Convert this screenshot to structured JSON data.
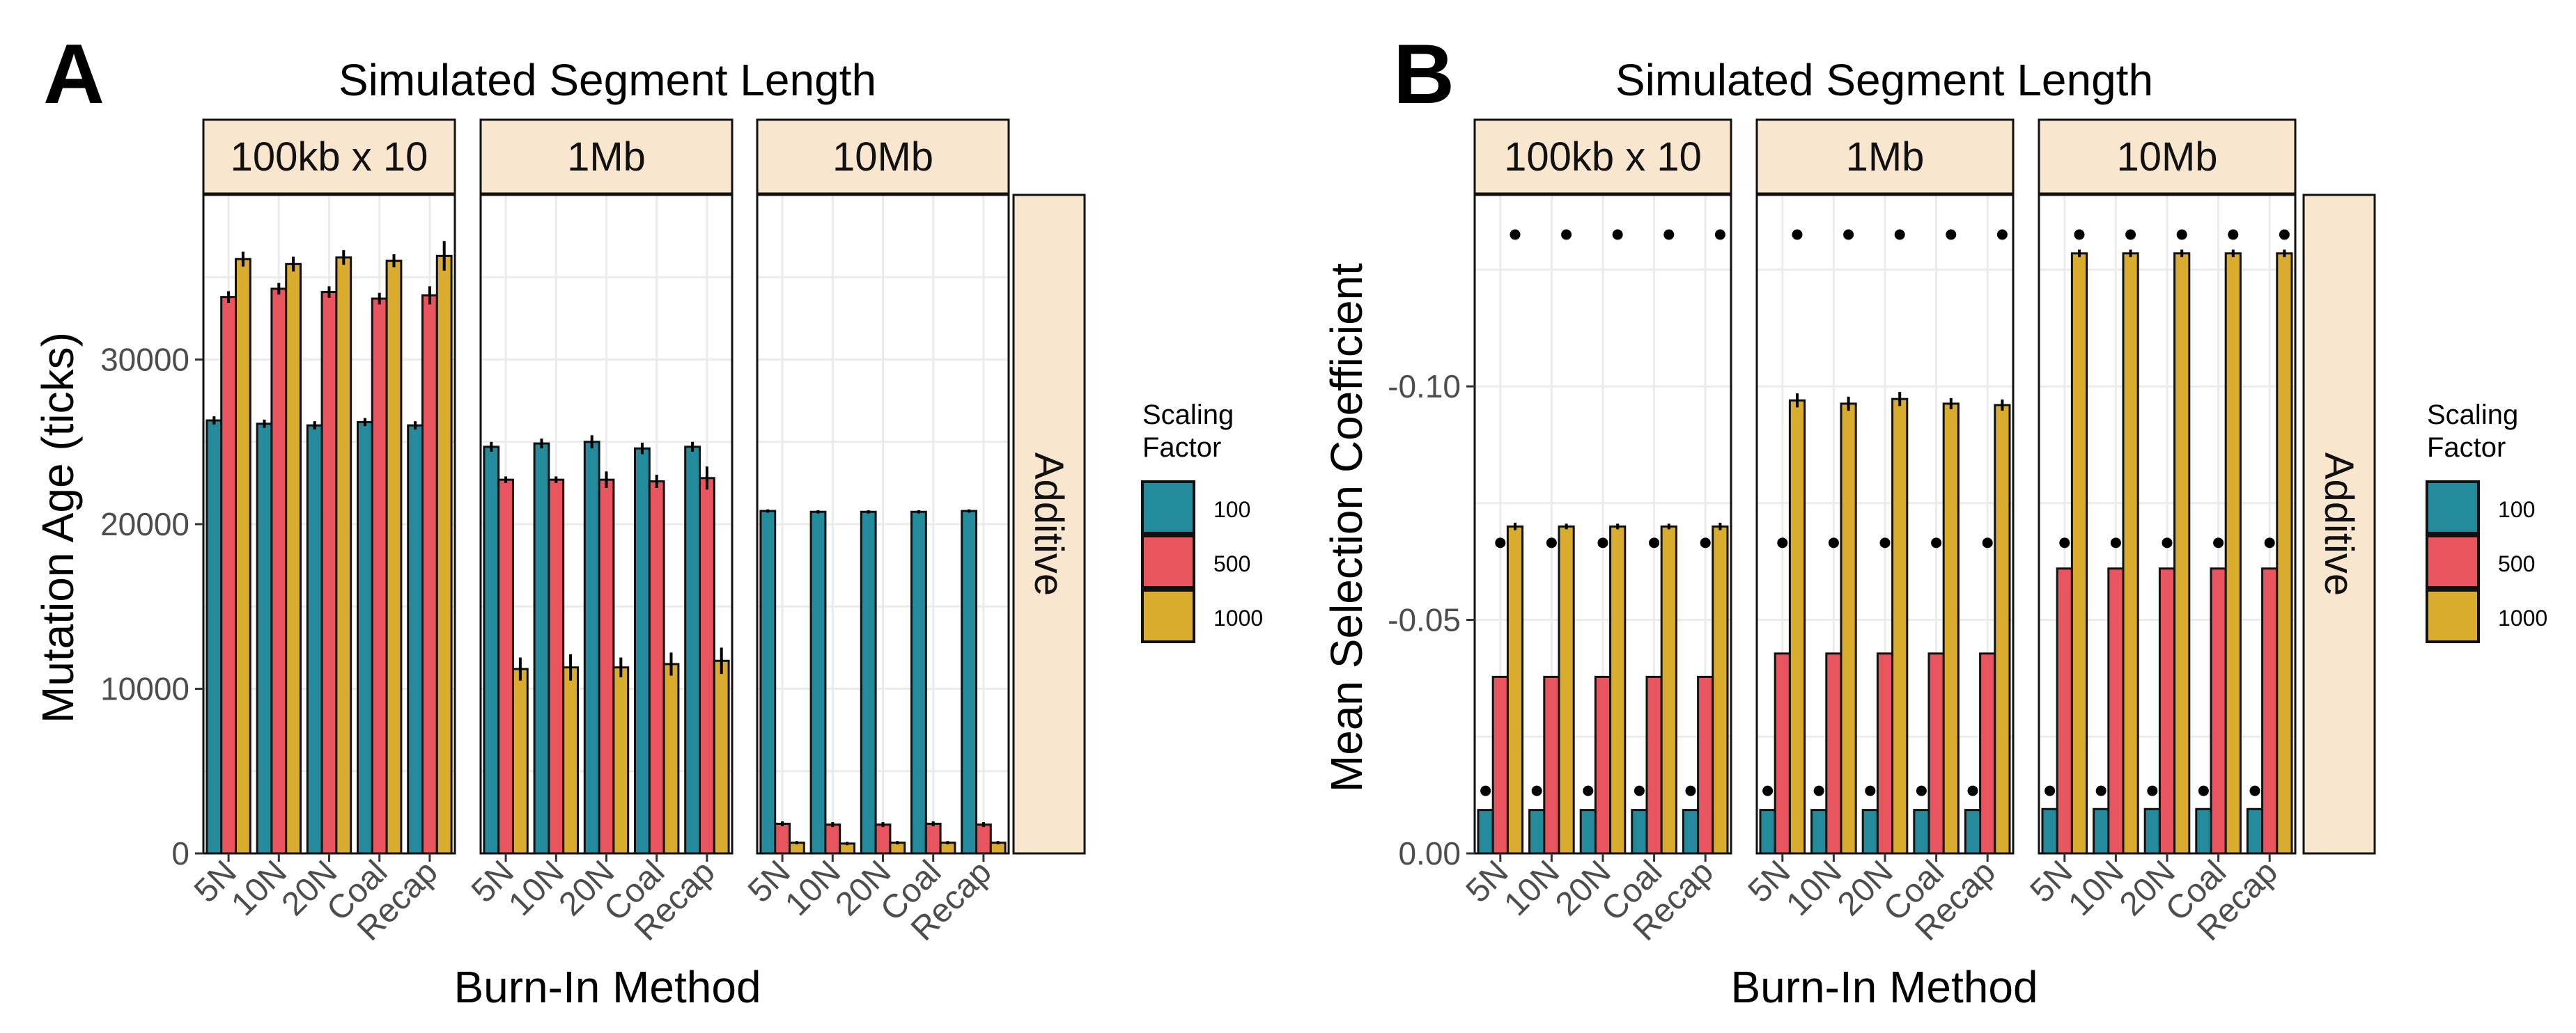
{
  "figure": {
    "panel_labels": [
      "A",
      "B"
    ],
    "strip_fill": "#f9e6cf",
    "grid_color": "#ebebeb"
  },
  "chart_data": [
    {
      "type": "bar",
      "panel": "A",
      "title": "Simulated Segment Length",
      "facets": [
        "100kb x 10",
        "1Mb",
        "10Mb"
      ],
      "row_strip": "Additive",
      "xlabel": "Burn-In Method",
      "ylabel": "Mutation Age (ticks)",
      "categories": [
        "5N",
        "10N",
        "20N",
        "Coal",
        "Recap"
      ],
      "ylim": [
        0,
        40000
      ],
      "yticks": [
        0,
        10000,
        20000,
        30000
      ],
      "ytick_labels": [
        "0",
        "10000",
        "20000",
        "30000"
      ],
      "legend": {
        "title_lines": [
          "Scaling",
          "Factor"
        ],
        "entries": [
          "100",
          "500",
          "1000"
        ],
        "colors": [
          "#248b9c",
          "#e8555e",
          "#d9ac2e"
        ],
        "position": "right"
      },
      "series_by_facet": [
        {
          "facet": "100kb x 10",
          "series": [
            {
              "name": "100",
              "values": [
                26300,
                26100,
                26000,
                26200,
                26000
              ],
              "err": [
                250,
                250,
                250,
                250,
                250
              ]
            },
            {
              "name": "500",
              "values": [
                33800,
                34300,
                34100,
                33700,
                33900
              ],
              "err": [
                350,
                350,
                350,
                350,
                550
              ]
            },
            {
              "name": "1000",
              "values": [
                36100,
                35800,
                36200,
                36000,
                36300
              ],
              "err": [
                450,
                450,
                450,
                400,
                900
              ]
            }
          ]
        },
        {
          "facet": "1Mb",
          "series": [
            {
              "name": "100",
              "values": [
                24700,
                24900,
                25000,
                24600,
                24700
              ],
              "err": [
                300,
                300,
                400,
                350,
                300
              ]
            },
            {
              "name": "500",
              "values": [
                22700,
                22700,
                22700,
                22600,
                22800
              ],
              "err": [
                200,
                200,
                500,
                400,
                700
              ]
            },
            {
              "name": "1000",
              "values": [
                11200,
                11300,
                11300,
                11500,
                11700
              ],
              "err": [
                700,
                800,
                600,
                700,
                800
              ]
            }
          ]
        },
        {
          "facet": "10Mb",
          "series": [
            {
              "name": "100",
              "values": [
                20800,
                20750,
                20750,
                20750,
                20800
              ],
              "err": [
                100,
                100,
                100,
                100,
                100
              ]
            },
            {
              "name": "500",
              "values": [
                1800,
                1750,
                1750,
                1800,
                1750
              ],
              "err": [
                150,
                150,
                150,
                150,
                150
              ]
            },
            {
              "name": "1000",
              "values": [
                650,
                600,
                650,
                650,
                650
              ],
              "err": [
                100,
                100,
                100,
                100,
                100
              ]
            }
          ]
        }
      ]
    },
    {
      "type": "bar",
      "panel": "B",
      "title": "Simulated Segment Length",
      "facets": [
        "100kb x 10",
        "1Mb",
        "10Mb"
      ],
      "row_strip": "Additive",
      "xlabel": "Burn-In Method",
      "ylabel": "Mean Selection Coefficient",
      "categories": [
        "5N",
        "10N",
        "20N",
        "Coal",
        "Recap"
      ],
      "ylim": [
        0,
        0.141
      ],
      "yticks": [
        0,
        0.05,
        0.1
      ],
      "ytick_labels": [
        "0.00",
        "-0.05",
        "-0.10"
      ],
      "legend": {
        "title_lines": [
          "Scaling",
          "Factor"
        ],
        "entries": [
          "100",
          "500",
          "1000"
        ],
        "colors": [
          "#248b9c",
          "#e8555e",
          "#d9ac2e"
        ],
        "position": "right"
      },
      "series_by_facet": [
        {
          "facet": "100kb x 10",
          "series": [
            {
              "name": "100",
              "values": [
                0.0093,
                0.0093,
                0.0093,
                0.0093,
                0.0093
              ],
              "dots": [
                0.0134,
                0.0134,
                0.0134,
                0.0134,
                0.0134
              ]
            },
            {
              "name": "500",
              "values": [
                0.0378,
                0.0378,
                0.0378,
                0.0378,
                0.0378
              ],
              "dots": [
                0.0665,
                0.0665,
                0.0665,
                0.0665,
                0.0665
              ]
            },
            {
              "name": "1000",
              "values": [
                0.07,
                0.07,
                0.07,
                0.07,
                0.07
              ],
              "dots": [
                0.1325,
                0.1325,
                0.1325,
                0.1325,
                0.1325
              ],
              "err": [
                0.0008,
                0.0006,
                0.0006,
                0.0006,
                0.0008
              ]
            }
          ]
        },
        {
          "facet": "1Mb",
          "series": [
            {
              "name": "100",
              "values": [
                0.0093,
                0.0093,
                0.0093,
                0.0093,
                0.0093
              ],
              "dots": [
                0.0134,
                0.0134,
                0.0134,
                0.0134,
                0.0134
              ]
            },
            {
              "name": "500",
              "values": [
                0.0428,
                0.0428,
                0.0428,
                0.0428,
                0.0428
              ],
              "dots": [
                0.0665,
                0.0665,
                0.0665,
                0.0665,
                0.0665
              ]
            },
            {
              "name": "1000",
              "values": [
                0.097,
                0.0963,
                0.0973,
                0.0963,
                0.096
              ],
              "dots": [
                0.1325,
                0.1325,
                0.1325,
                0.1325,
                0.1325
              ],
              "err": [
                0.0015,
                0.0015,
                0.0015,
                0.0012,
                0.0012
              ]
            }
          ]
        },
        {
          "facet": "10Mb",
          "series": [
            {
              "name": "100",
              "values": [
                0.0095,
                0.0095,
                0.0095,
                0.0095,
                0.0095
              ],
              "dots": [
                0.0134,
                0.0134,
                0.0134,
                0.0134,
                0.0134
              ]
            },
            {
              "name": "500",
              "values": [
                0.061,
                0.061,
                0.061,
                0.061,
                0.061
              ],
              "dots": [
                0.0665,
                0.0665,
                0.0665,
                0.0665,
                0.0665
              ]
            },
            {
              "name": "1000",
              "values": [
                0.1285,
                0.1285,
                0.1285,
                0.1285,
                0.1285
              ],
              "dots": [
                0.1325,
                0.1325,
                0.1325,
                0.1325,
                0.1325
              ],
              "err": [
                0.0008,
                0.0008,
                0.0008,
                0.0008,
                0.0008
              ]
            }
          ]
        }
      ]
    }
  ]
}
